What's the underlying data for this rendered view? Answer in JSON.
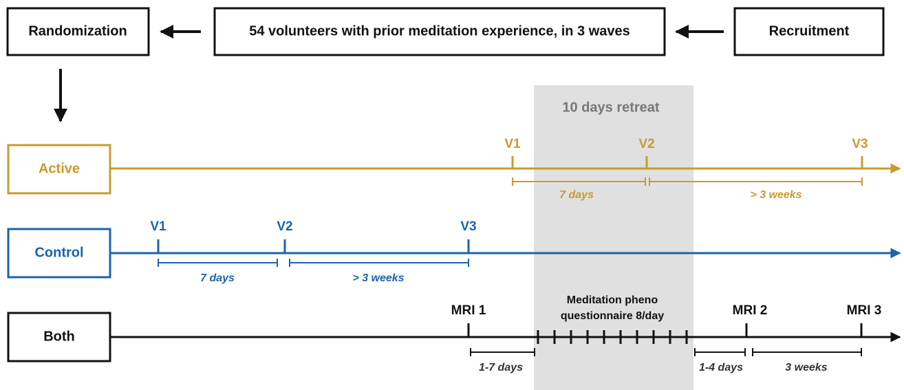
{
  "flow": {
    "randomization": "Randomization",
    "volunteers": "54 volunteers with prior meditation experience, in 3 waves",
    "recruitment": "Recruitment"
  },
  "retreat": "10 days retreat",
  "active": {
    "label": "Active",
    "visits": [
      "V1",
      "V2",
      "V3"
    ],
    "intervals": [
      "7 days",
      "> 3 weeks"
    ]
  },
  "control": {
    "label": "Control",
    "visits": [
      "V1",
      "V2",
      "V3"
    ],
    "intervals": [
      "7 days",
      "> 3 weeks"
    ]
  },
  "both": {
    "label": "Both",
    "scans": [
      "MRI 1",
      "MRI 2",
      "MRI 3"
    ],
    "questionnaire": [
      "Meditation pheno",
      "questionnaire 8/day"
    ],
    "intervals": [
      "1-7 days",
      "1-4 days",
      "3 weeks"
    ]
  }
}
